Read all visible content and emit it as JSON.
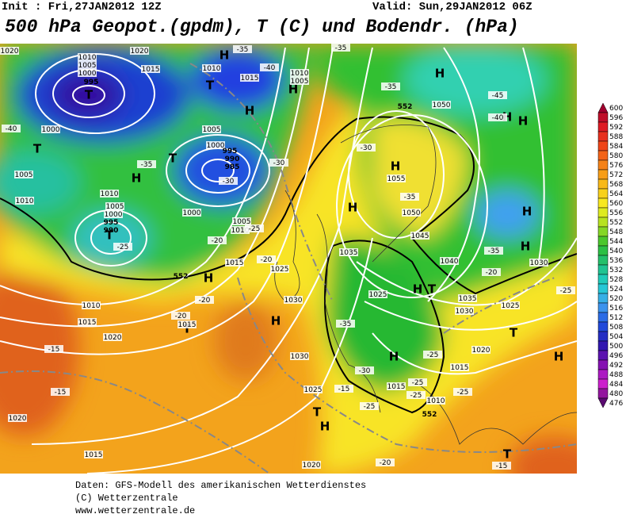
{
  "header": {
    "init": "Init : Fri,27JAN2012 12Z",
    "valid": "Valid: Sun,29JAN2012 06Z",
    "title": "500 hPa Geopot.(gpdm), T (C) und Bodendr. (hPa)"
  },
  "legend": {
    "values": [
      600,
      596,
      592,
      588,
      584,
      580,
      576,
      572,
      568,
      564,
      560,
      556,
      552,
      548,
      544,
      540,
      536,
      532,
      528,
      524,
      520,
      516,
      512,
      508,
      504,
      500,
      496,
      492,
      488,
      484,
      480,
      476
    ]
  },
  "map": {
    "markers": [
      "T",
      "T",
      "T",
      "T",
      "T",
      "H",
      "H",
      "H",
      "H",
      "H",
      "H",
      "H",
      "H",
      "H",
      "H",
      "H",
      "H",
      "H",
      "H",
      "T",
      "T",
      "H",
      "T",
      "H",
      "T",
      "T",
      "H"
    ],
    "labels": [
      "1010",
      "1005",
      "1000",
      "995",
      "1000",
      "1005",
      "1010",
      "1010",
      "1005",
      "1000",
      "995",
      "990",
      "1015",
      "1010",
      "1015",
      "1010",
      "1005",
      "1005",
      "1000",
      "995",
      "990",
      "985",
      "1000",
      "1005",
      "1010",
      "1015",
      "1025",
      "1030",
      "1035",
      "1045",
      "1050",
      "1055",
      "1050",
      "1040",
      "1030",
      "1035",
      "1030",
      "1025",
      "1020",
      "1025",
      "1015",
      "1015",
      "1010",
      "1025",
      "1030",
      "1020",
      "1015",
      "1010",
      "1015",
      "1020",
      "1015",
      "1020",
      "1020",
      "1020",
      "-35",
      "-40",
      "-40",
      "-35",
      "-30",
      "-30",
      "-25",
      "-25",
      "-20",
      "-20",
      "-20",
      "-20",
      "-15",
      "-15",
      "-35",
      "-35",
      "-45",
      "-40",
      "-35",
      "-25",
      "-20",
      "-35",
      "-30",
      "-25",
      "-25",
      "-25",
      "-25",
      "-25",
      "-20",
      "-15",
      "-35",
      "-30",
      "-15",
      "552",
      "552",
      "552"
    ]
  },
  "footer": {
    "lines": [
      "Daten: GFS-Modell des amerikanischen Wetterdienstes",
      "(C) Wetterzentrale",
      "www.wetterzentrale.de"
    ]
  }
}
